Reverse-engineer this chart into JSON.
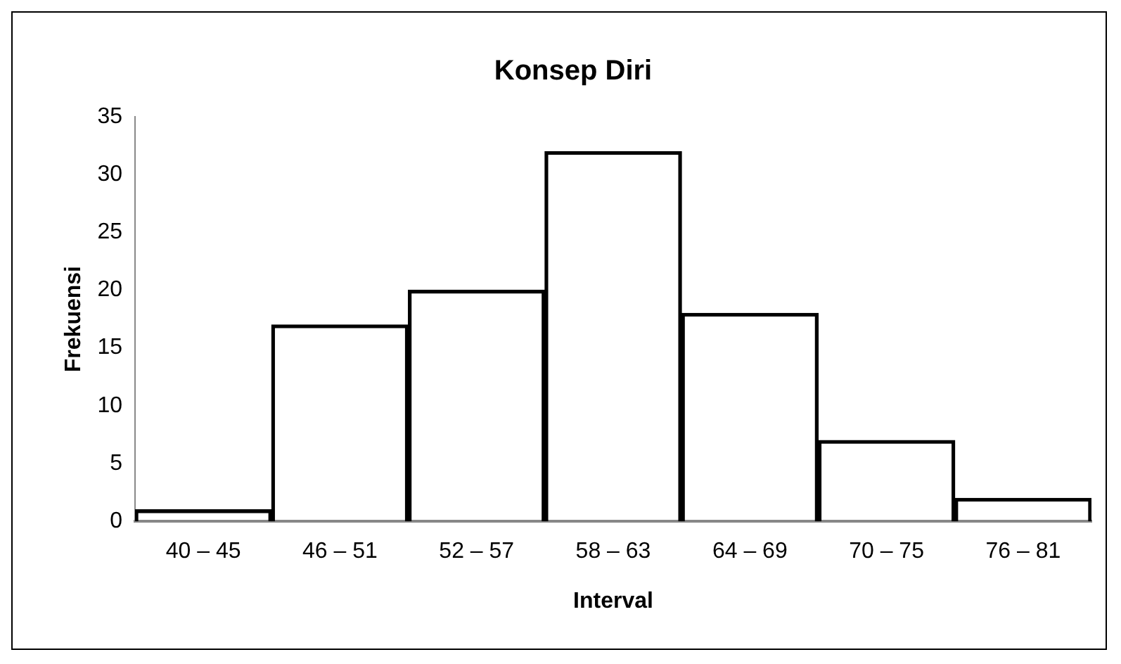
{
  "chart_data": {
    "type": "bar",
    "title": "Konsep Diri",
    "xlabel": "Interval",
    "ylabel": "Frekuensi",
    "categories": [
      "40 – 45",
      "46 – 51",
      "52 – 57",
      "58 – 63",
      "64 – 69",
      "70 – 75",
      "76 – 81"
    ],
    "values": [
      1,
      17,
      20,
      32,
      18,
      7,
      2
    ],
    "color": "#000000",
    "ylim": [
      0,
      35
    ],
    "yticks": [
      0,
      5,
      10,
      15,
      20,
      25,
      30,
      35
    ],
    "grid": false,
    "legend": false
  }
}
